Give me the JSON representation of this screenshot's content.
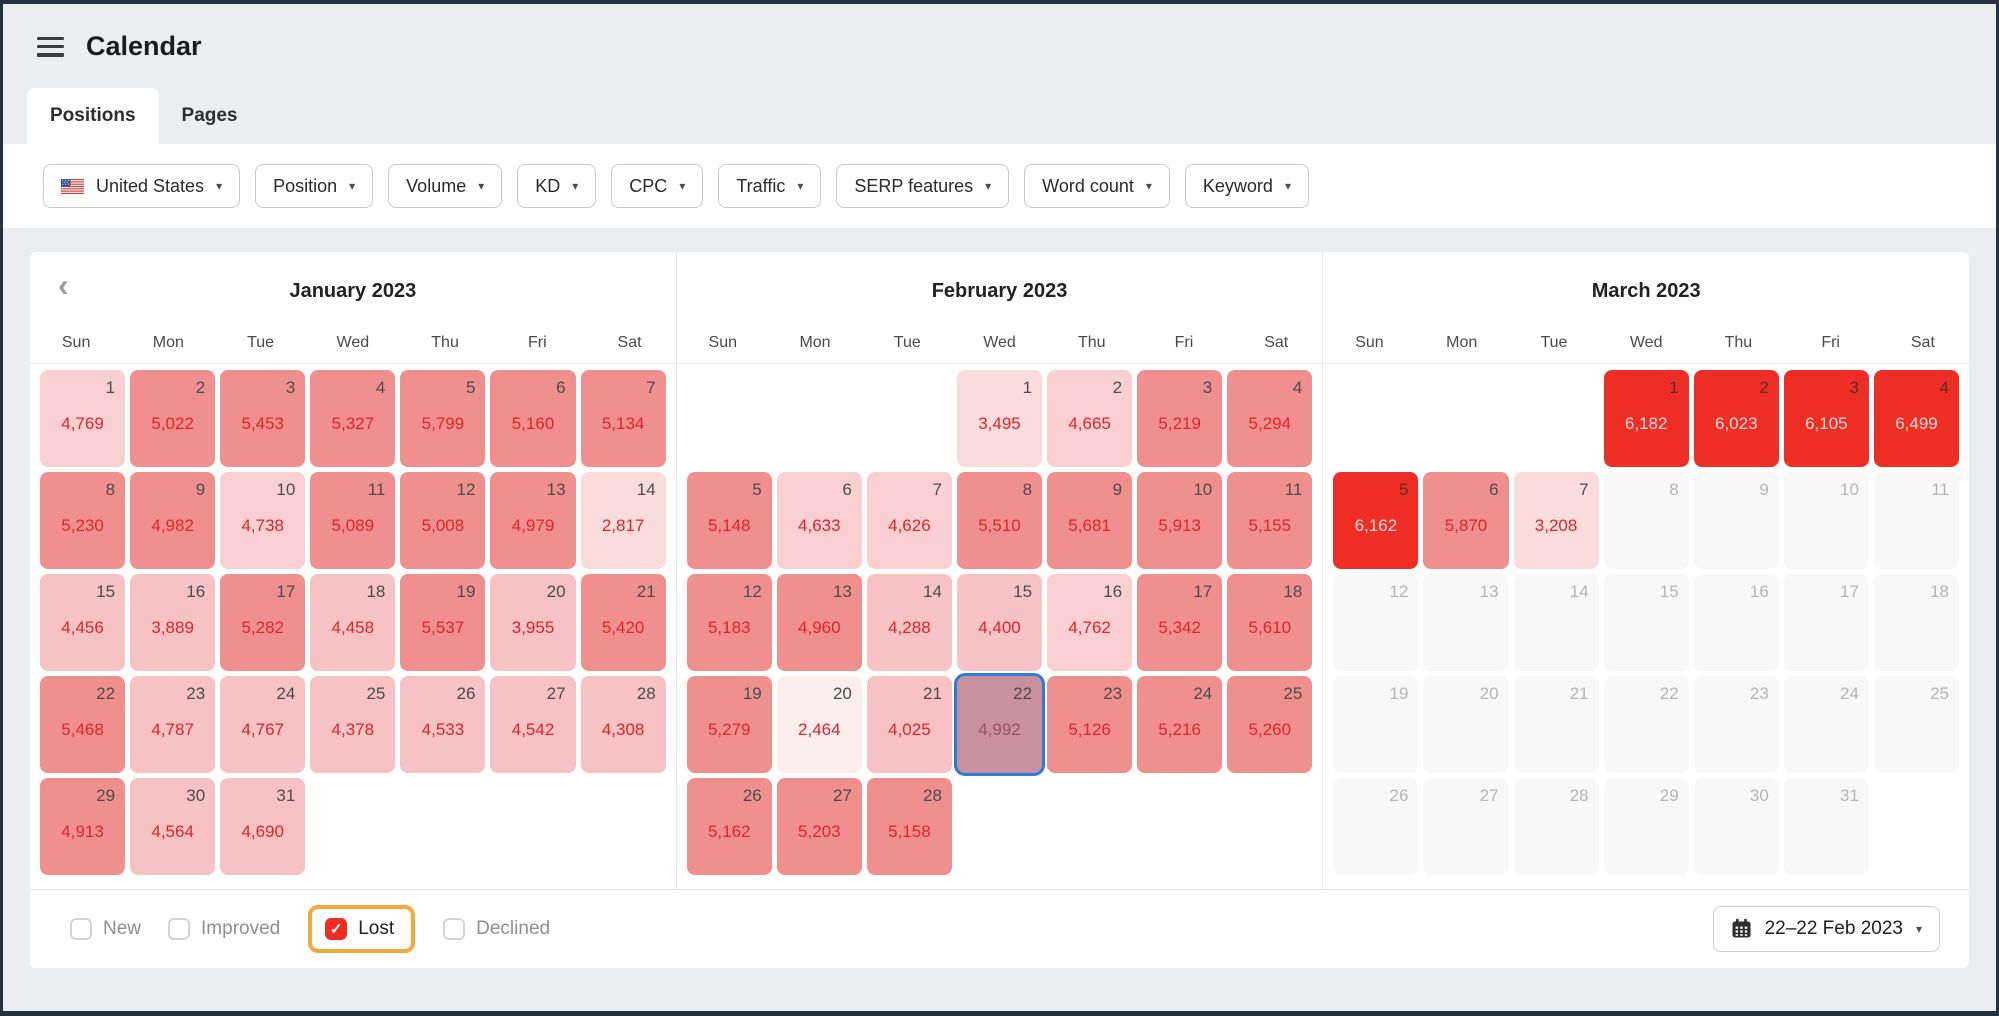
{
  "header": {
    "title": "Calendar"
  },
  "tabs": [
    {
      "label": "Positions",
      "active": true
    },
    {
      "label": "Pages",
      "active": false
    }
  ],
  "filters": [
    {
      "label": "United States",
      "has_flag": true
    },
    {
      "label": "Position"
    },
    {
      "label": "Volume"
    },
    {
      "label": "KD"
    },
    {
      "label": "CPC"
    },
    {
      "label": "Traffic"
    },
    {
      "label": "SERP features"
    },
    {
      "label": "Word count"
    },
    {
      "label": "Keyword"
    }
  ],
  "day_headers": [
    "Sun",
    "Mon",
    "Tue",
    "Wed",
    "Thu",
    "Fri",
    "Sat"
  ],
  "months": [
    {
      "name": "January 2023",
      "prev_chevron": true,
      "leading_blanks": 0,
      "cells": [
        {
          "day": "1",
          "value": "4,769",
          "level": "l3"
        },
        {
          "day": "2",
          "value": "5,022",
          "level": "l5"
        },
        {
          "day": "3",
          "value": "5,453",
          "level": "l5"
        },
        {
          "day": "4",
          "value": "5,327",
          "level": "l5"
        },
        {
          "day": "5",
          "value": "5,799",
          "level": "l5"
        },
        {
          "day": "6",
          "value": "5,160",
          "level": "l5"
        },
        {
          "day": "7",
          "value": "5,134",
          "level": "l5"
        },
        {
          "day": "8",
          "value": "5,230",
          "level": "l5"
        },
        {
          "day": "9",
          "value": "4,982",
          "level": "l5"
        },
        {
          "day": "10",
          "value": "4,738",
          "level": "l3"
        },
        {
          "day": "11",
          "value": "5,089",
          "level": "l5"
        },
        {
          "day": "12",
          "value": "5,008",
          "level": "l5"
        },
        {
          "day": "13",
          "value": "4,979",
          "level": "l5"
        },
        {
          "day": "14",
          "value": "2,817",
          "level": "l2"
        },
        {
          "day": "15",
          "value": "4,456",
          "level": "l4"
        },
        {
          "day": "16",
          "value": "3,889",
          "level": "l4"
        },
        {
          "day": "17",
          "value": "5,282",
          "level": "l5"
        },
        {
          "day": "18",
          "value": "4,458",
          "level": "l4"
        },
        {
          "day": "19",
          "value": "5,537",
          "level": "l5"
        },
        {
          "day": "20",
          "value": "3,955",
          "level": "l4"
        },
        {
          "day": "21",
          "value": "5,420",
          "level": "l5"
        },
        {
          "day": "22",
          "value": "5,468",
          "level": "l5"
        },
        {
          "day": "23",
          "value": "4,787",
          "level": "l4"
        },
        {
          "day": "24",
          "value": "4,767",
          "level": "l4"
        },
        {
          "day": "25",
          "value": "4,378",
          "level": "l4"
        },
        {
          "day": "26",
          "value": "4,533",
          "level": "l4"
        },
        {
          "day": "27",
          "value": "4,542",
          "level": "l4"
        },
        {
          "day": "28",
          "value": "4,308",
          "level": "l4"
        },
        {
          "day": "29",
          "value": "4,913",
          "level": "l5"
        },
        {
          "day": "30",
          "value": "4,564",
          "level": "l4"
        },
        {
          "day": "31",
          "value": "4,690",
          "level": "l4"
        }
      ]
    },
    {
      "name": "February 2023",
      "prev_chevron": false,
      "leading_blanks": 3,
      "cells": [
        {
          "day": "1",
          "value": "3,495",
          "level": "l2"
        },
        {
          "day": "2",
          "value": "4,665",
          "level": "l3"
        },
        {
          "day": "3",
          "value": "5,219",
          "level": "l5"
        },
        {
          "day": "4",
          "value": "5,294",
          "level": "l5"
        },
        {
          "day": "5",
          "value": "5,148",
          "level": "l5"
        },
        {
          "day": "6",
          "value": "4,633",
          "level": "l3"
        },
        {
          "day": "7",
          "value": "4,626",
          "level": "l3"
        },
        {
          "day": "8",
          "value": "5,510",
          "level": "l5"
        },
        {
          "day": "9",
          "value": "5,681",
          "level": "l5"
        },
        {
          "day": "10",
          "value": "5,913",
          "level": "l5"
        },
        {
          "day": "11",
          "value": "5,155",
          "level": "l5"
        },
        {
          "day": "12",
          "value": "5,183",
          "level": "l5"
        },
        {
          "day": "13",
          "value": "4,960",
          "level": "l5"
        },
        {
          "day": "14",
          "value": "4,288",
          "level": "l4"
        },
        {
          "day": "15",
          "value": "4,400",
          "level": "l4"
        },
        {
          "day": "16",
          "value": "4,762",
          "level": "l3"
        },
        {
          "day": "17",
          "value": "5,342",
          "level": "l5"
        },
        {
          "day": "18",
          "value": "5,610",
          "level": "l5"
        },
        {
          "day": "19",
          "value": "5,279",
          "level": "l5"
        },
        {
          "day": "20",
          "value": "2,464",
          "level": "l1"
        },
        {
          "day": "21",
          "value": "4,025",
          "level": "l4"
        },
        {
          "day": "22",
          "value": "4,992",
          "level": "l4",
          "selected": true
        },
        {
          "day": "23",
          "value": "5,126",
          "level": "l5"
        },
        {
          "day": "24",
          "value": "5,216",
          "level": "l5"
        },
        {
          "day": "25",
          "value": "5,260",
          "level": "l5"
        },
        {
          "day": "26",
          "value": "5,162",
          "level": "l5"
        },
        {
          "day": "27",
          "value": "5,203",
          "level": "l5"
        },
        {
          "day": "28",
          "value": "5,158",
          "level": "l5"
        }
      ]
    },
    {
      "name": "March 2023",
      "prev_chevron": false,
      "leading_blanks": 3,
      "cells": [
        {
          "day": "1",
          "value": "6,182",
          "level": "l6"
        },
        {
          "day": "2",
          "value": "6,023",
          "level": "l6"
        },
        {
          "day": "3",
          "value": "6,105",
          "level": "l6"
        },
        {
          "day": "4",
          "value": "6,499",
          "level": "l6"
        },
        {
          "day": "5",
          "value": "6,162",
          "level": "l6"
        },
        {
          "day": "6",
          "value": "5,870",
          "level": "l5"
        },
        {
          "day": "7",
          "value": "3,208",
          "level": "l2"
        },
        {
          "day": "8",
          "level": "future"
        },
        {
          "day": "9",
          "level": "future"
        },
        {
          "day": "10",
          "level": "future"
        },
        {
          "day": "11",
          "level": "future"
        },
        {
          "day": "12",
          "level": "future"
        },
        {
          "day": "13",
          "level": "future"
        },
        {
          "day": "14",
          "level": "future"
        },
        {
          "day": "15",
          "level": "future"
        },
        {
          "day": "16",
          "level": "future"
        },
        {
          "day": "17",
          "level": "future"
        },
        {
          "day": "18",
          "level": "future"
        },
        {
          "day": "19",
          "level": "future"
        },
        {
          "day": "20",
          "level": "future"
        },
        {
          "day": "21",
          "level": "future"
        },
        {
          "day": "22",
          "level": "future"
        },
        {
          "day": "23",
          "level": "future"
        },
        {
          "day": "24",
          "level": "future"
        },
        {
          "day": "25",
          "level": "future"
        },
        {
          "day": "26",
          "level": "future"
        },
        {
          "day": "27",
          "level": "future"
        },
        {
          "day": "28",
          "level": "future"
        },
        {
          "day": "29",
          "level": "future"
        },
        {
          "day": "30",
          "level": "future"
        },
        {
          "day": "31",
          "level": "future"
        }
      ]
    }
  ],
  "legend": [
    {
      "label": "New",
      "checked": false,
      "highlighted": false
    },
    {
      "label": "Improved",
      "checked": false,
      "highlighted": false
    },
    {
      "label": "Lost",
      "checked": true,
      "highlighted": true
    },
    {
      "label": "Declined",
      "checked": false,
      "highlighted": false
    }
  ],
  "date_picker": {
    "label": "22–22 Feb 2023"
  },
  "icons": {
    "menu": "hamburger-icon",
    "prev": "chevron-left-icon",
    "dropdown": "chevron-down-icon",
    "flag": "us-flag-icon",
    "calendar": "calendar-icon",
    "check": "✓",
    "chevron_left_glyph": "‹",
    "caret_glyph": "▾"
  },
  "colors": {
    "level_l1": "#fdeeee",
    "level_l2": "#fbdcdd",
    "level_l3": "#f9cfd1",
    "level_l4": "#f6c2c3",
    "level_l5": "#f0908e",
    "level_l6": "#ee2e24",
    "future_bg": "#f8f8f8",
    "value_text": "#e0242b",
    "value_text_on_red": "#ffd9d6",
    "selected_bg": "#c9919e",
    "selected_border": "#2e7cd9",
    "highlight_orange": "#f6a93b",
    "checkbox_checked_red": "#ee2e24",
    "page_bg": "#ebedee",
    "panel_bg": "#ffffff"
  }
}
